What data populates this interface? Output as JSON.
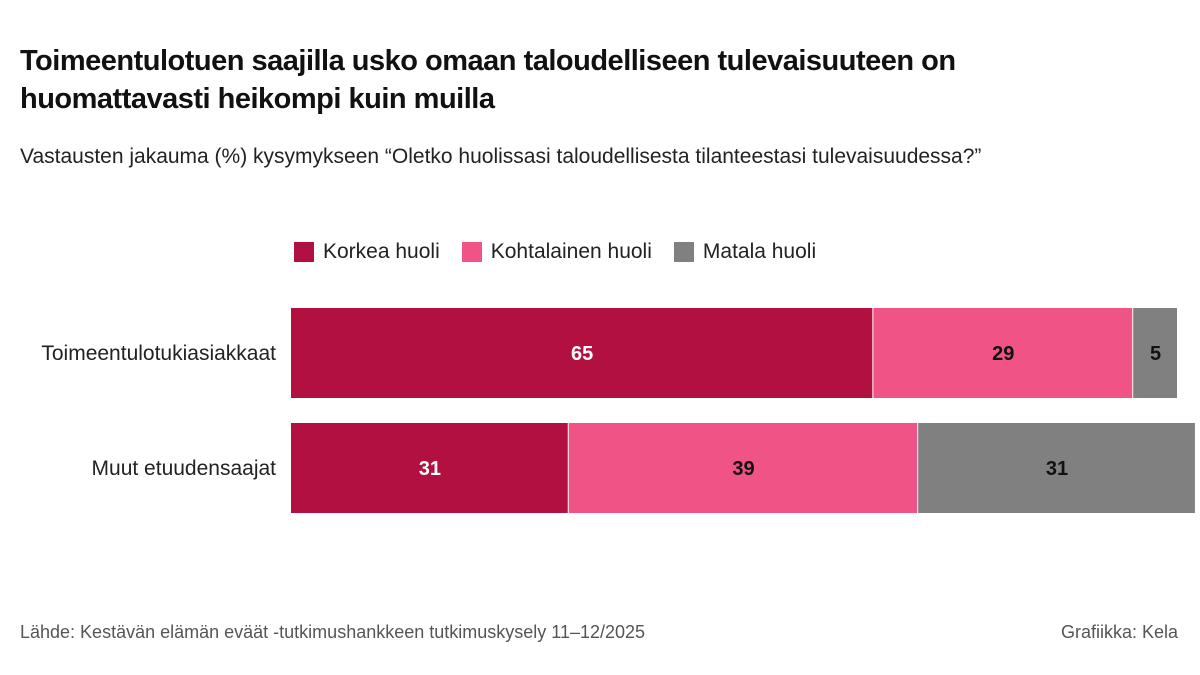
{
  "title": "Toimeentulotuen saajilla usko omaan taloudelliseen tulevaisuuteen on huomattavasti heikompi kuin muilla",
  "subtitle": "Vastausten jakauma (%) kysymykseen “Oletko huolissasi taloudellisesta tilanteestasi tulevaisuudessa?”",
  "footer": {
    "source": "Lähde: Kestävän elämän eväät -tutkimushankkeen tutkimuskysely 11–12/2025",
    "credit": "Grafiikka: Kela"
  },
  "chart_data": {
    "type": "bar",
    "orientation": "horizontal",
    "stacked": true,
    "categories": [
      "Toimeentulotukiasiakkaat",
      "Muut etuudensaajat"
    ],
    "series": [
      {
        "name": "Korkea huoli",
        "color": "#b31042",
        "label_color": "#ffffff",
        "values": [
          65,
          31
        ]
      },
      {
        "name": "Kohtalainen huoli",
        "color": "#f05386",
        "label_color": "#111111",
        "values": [
          29,
          39
        ]
      },
      {
        "name": "Matala huoli",
        "color": "#808080",
        "label_color": "#111111",
        "values": [
          5,
          31
        ]
      }
    ],
    "xlim": [
      0,
      99
    ],
    "legend_position": "top",
    "grid": false
  }
}
